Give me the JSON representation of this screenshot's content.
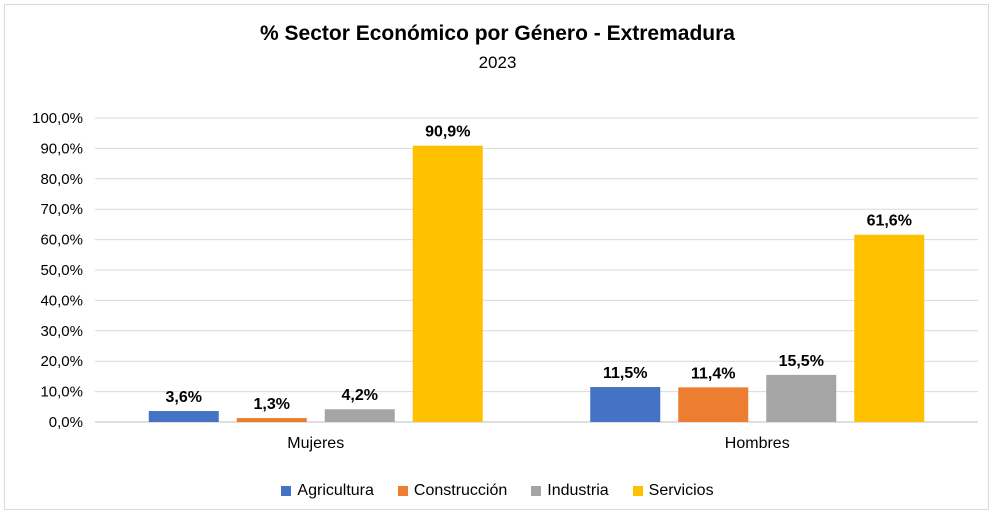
{
  "chart_data": {
    "type": "bar",
    "title": "% Sector Económico por Género - Extremadura",
    "subtitle": "2023",
    "categories": [
      "Mujeres",
      "Hombres"
    ],
    "series": [
      {
        "name": "Agricultura",
        "color": "#4472C4",
        "values": [
          3.6,
          11.5
        ],
        "labels": [
          "3,6%",
          "11,5%"
        ]
      },
      {
        "name": "Construcción",
        "color": "#ED7D31",
        "values": [
          1.3,
          11.4
        ],
        "labels": [
          "1,3%",
          "11,4%"
        ]
      },
      {
        "name": "Industria",
        "color": "#A5A5A5",
        "values": [
          4.2,
          15.5
        ],
        "labels": [
          "4,2%",
          "15,5%"
        ]
      },
      {
        "name": "Servicios",
        "color": "#FFC000",
        "values": [
          90.9,
          61.6
        ],
        "labels": [
          "90,9%",
          "61,6%"
        ]
      }
    ],
    "yticks": [
      "0,0%",
      "10,0%",
      "20,0%",
      "30,0%",
      "40,0%",
      "50,0%",
      "60,0%",
      "70,0%",
      "80,0%",
      "90,0%",
      "100,0%"
    ],
    "ylim": [
      0,
      100
    ],
    "grid": true,
    "legend_position": "bottom"
  }
}
